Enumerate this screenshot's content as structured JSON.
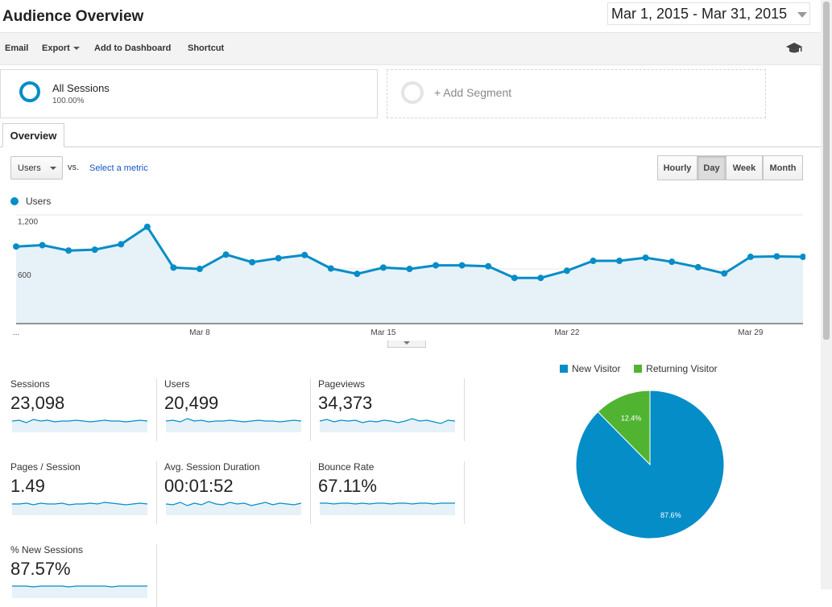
{
  "header": {
    "title": "Audience Overview",
    "date_range": "Mar 1, 2015 - Mar 31, 2015"
  },
  "toolbar": {
    "email": "Email",
    "export": "Export",
    "add_to_dashboard": "Add to Dashboard",
    "shortcut": "Shortcut",
    "help_icon": "graduation-cap-icon"
  },
  "segments": {
    "all_sessions": {
      "label": "All Sessions",
      "percent": "100.00%"
    },
    "add_segment": "+ Add Segment"
  },
  "tabs": {
    "overview": "Overview"
  },
  "chart_controls": {
    "metric": "Users",
    "vs": "vs.",
    "select_metric": "Select a metric",
    "ranges": [
      "Hourly",
      "Day",
      "Week",
      "Month"
    ],
    "active_range": "Day"
  },
  "colors": {
    "primary": "#058dc7",
    "area_fill": "#e6f2f8",
    "returning": "#50b432"
  },
  "chart_data": {
    "type": "area",
    "legend": "Users",
    "x": [
      "Mar 1",
      "Mar 2",
      "Mar 3",
      "Mar 4",
      "Mar 5",
      "Mar 6",
      "Mar 7",
      "Mar 8",
      "Mar 9",
      "Mar 10",
      "Mar 11",
      "Mar 12",
      "Mar 13",
      "Mar 14",
      "Mar 15",
      "Mar 16",
      "Mar 17",
      "Mar 18",
      "Mar 19",
      "Mar 20",
      "Mar 21",
      "Mar 22",
      "Mar 23",
      "Mar 24",
      "Mar 25",
      "Mar 26",
      "Mar 27",
      "Mar 28",
      "Mar 29",
      "Mar 30",
      "Mar 31"
    ],
    "values": [
      860,
      875,
      815,
      825,
      885,
      1080,
      625,
      610,
      770,
      685,
      730,
      765,
      615,
      555,
      625,
      610,
      650,
      650,
      640,
      510,
      510,
      590,
      700,
      700,
      735,
      690,
      630,
      560,
      745,
      750,
      745
    ],
    "yticks": [
      600,
      1200
    ],
    "ytick_labels": [
      "600",
      "1,200"
    ],
    "ylim": [
      0,
      1200
    ],
    "xtick_labels": [
      "...",
      "Mar 8",
      "Mar 15",
      "Mar 22",
      "Mar 29"
    ],
    "grid": true
  },
  "stats": [
    {
      "label": "Sessions",
      "value": "23,098",
      "spark": [
        14,
        15,
        12,
        16,
        14,
        15,
        13,
        14,
        14,
        15,
        14,
        13,
        14,
        15,
        14,
        14,
        13,
        14,
        15,
        14
      ]
    },
    {
      "label": "Users",
      "value": "20,499",
      "spark": [
        14,
        15,
        13,
        17,
        14,
        15,
        13,
        14,
        14,
        15,
        14,
        13,
        14,
        15,
        14,
        14,
        13,
        14,
        15,
        14
      ]
    },
    {
      "label": "Pageviews",
      "value": "34,373",
      "spark": [
        14,
        16,
        13,
        15,
        14,
        15,
        12,
        14,
        13,
        15,
        14,
        12,
        14,
        17,
        14,
        15,
        13,
        11,
        15,
        14
      ]
    },
    {
      "label": "Pages / Session",
      "value": "1.49",
      "spark": [
        14,
        14,
        15,
        13,
        15,
        14,
        14,
        15,
        13,
        14,
        14,
        15,
        14,
        16,
        15,
        14,
        13,
        14,
        15,
        14
      ]
    },
    {
      "label": "Avg. Session Duration",
      "value": "00:01:52",
      "spark": [
        14,
        13,
        16,
        12,
        15,
        13,
        17,
        14,
        13,
        16,
        14,
        15,
        12,
        14,
        16,
        13,
        15,
        14,
        13,
        15
      ]
    },
    {
      "label": "Bounce Rate",
      "value": "67.11%",
      "spark": [
        15,
        15,
        14,
        15,
        15,
        14,
        15,
        14,
        15,
        15,
        14,
        15,
        15,
        14,
        15,
        15,
        14,
        15,
        15,
        15
      ]
    },
    {
      "label": "% New Sessions",
      "value": "87.57%",
      "spark": [
        15,
        15,
        15,
        14,
        15,
        15,
        15,
        15,
        14,
        15,
        15,
        15,
        15,
        15,
        14,
        15,
        15,
        15,
        15,
        15
      ]
    }
  ],
  "visitor_pie": {
    "type": "pie",
    "legend": [
      "New Visitor",
      "Returning Visitor"
    ],
    "values": [
      87.6,
      12.4
    ],
    "labels": [
      "87.6%",
      "12.4%"
    ],
    "colors": [
      "#058dc7",
      "#50b432"
    ]
  }
}
